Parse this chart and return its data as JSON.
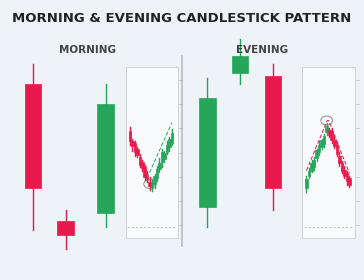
{
  "title": "MORNING & EVENING CANDLESTICK PATTERN",
  "title_fontsize": 9.5,
  "title_color": "#222222",
  "subtitle_morning": "MORNING",
  "subtitle_evening": "EVENING",
  "subtitle_fontsize": 7.5,
  "bg_color": "#eef3f8",
  "chart_bg": "#f8fafc",
  "bearish_color": "#e8194b",
  "bullish_color": "#26a65b",
  "divider_color": "#bbbbbb",
  "dashed_line_color": "#aaaaaa",
  "panel_edge_color": "#cccccc"
}
